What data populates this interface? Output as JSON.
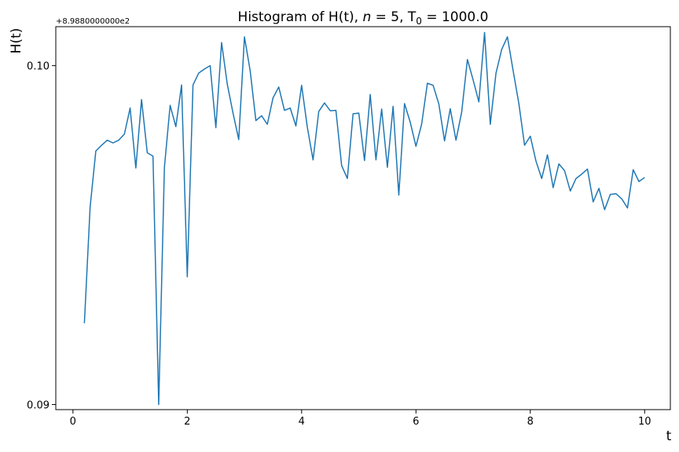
{
  "chart_data": {
    "type": "line",
    "title_parts": {
      "pre": "Histogram of H(t), ",
      "italic": "n",
      "mid": " = 5, T",
      "sub": "0",
      "post": " = 1000.0"
    },
    "xlabel": "t",
    "ylabel": "H(t)",
    "offset_text": "+8.9880000000e2",
    "xlim": [
      -0.3,
      10.45
    ],
    "ylim": [
      0.08985,
      0.10115
    ],
    "xticks": [
      0,
      2,
      4,
      6,
      8,
      10
    ],
    "xtick_labels": [
      "0",
      "2",
      "4",
      "6",
      "8",
      "10"
    ],
    "yticks": [
      0.09,
      0.1
    ],
    "ytick_labels": [
      "0.09",
      "0.10"
    ],
    "grid": false,
    "series": [
      {
        "color": "#1f77b4",
        "x": [
          0.2,
          0.3,
          0.4,
          0.5,
          0.6,
          0.7,
          0.8,
          0.9,
          1.0,
          1.1,
          1.2,
          1.3,
          1.4,
          1.5,
          1.6,
          1.7,
          1.8,
          1.9,
          2.0,
          2.1,
          2.2,
          2.3,
          2.4,
          2.5,
          2.6,
          2.7,
          2.8,
          2.9,
          3.0,
          3.1,
          3.2,
          3.3,
          3.4,
          3.5,
          3.6,
          3.7,
          3.8,
          3.9,
          4.0,
          4.1,
          4.2,
          4.3,
          4.4,
          4.5,
          4.6,
          4.7,
          4.8,
          4.9,
          5.0,
          5.1,
          5.2,
          5.3,
          5.4,
          5.5,
          5.6,
          5.7,
          5.8,
          5.9,
          6.0,
          6.1,
          6.2,
          6.3,
          6.4,
          6.5,
          6.6,
          6.7,
          6.8,
          6.9,
          7.0,
          7.1,
          7.2,
          7.3,
          7.4,
          7.5,
          7.6,
          7.7,
          7.8,
          7.9,
          8.0,
          8.1,
          8.2,
          8.3,
          8.4,
          8.5,
          8.6,
          8.7,
          8.8,
          8.9,
          9.0,
          9.1,
          9.2,
          9.3,
          9.4,
          9.5,
          9.6,
          9.7,
          9.8,
          9.9,
          10.0
        ],
        "y": [
          0.0924,
          0.09582,
          0.09748,
          0.09765,
          0.0978,
          0.09772,
          0.0978,
          0.09798,
          0.09875,
          0.09698,
          0.099,
          0.09743,
          0.09733,
          0.09,
          0.097,
          0.09883,
          0.0982,
          0.09943,
          0.09377,
          0.09943,
          0.09978,
          0.0999,
          0.1,
          0.09817,
          0.10068,
          0.09945,
          0.0986,
          0.09782,
          0.10085,
          0.09985,
          0.09838,
          0.09852,
          0.09827,
          0.09905,
          0.09937,
          0.09868,
          0.09875,
          0.09822,
          0.09942,
          0.09818,
          0.09722,
          0.09865,
          0.0989,
          0.09867,
          0.09868,
          0.09705,
          0.09667,
          0.09858,
          0.0986,
          0.0972,
          0.09915,
          0.09722,
          0.09872,
          0.097,
          0.0988,
          0.09618,
          0.09888,
          0.09833,
          0.09762,
          0.09828,
          0.09948,
          0.09942,
          0.09887,
          0.09778,
          0.09873,
          0.0978,
          0.09863,
          0.10018,
          0.09958,
          0.09893,
          0.10098,
          0.09827,
          0.09978,
          0.10048,
          0.10085,
          0.09985,
          0.09888,
          0.09765,
          0.09792,
          0.09718,
          0.09667,
          0.09737,
          0.0964,
          0.0971,
          0.0969,
          0.0963,
          0.09667,
          0.0968,
          0.09695,
          0.09598,
          0.09638,
          0.09575,
          0.0962,
          0.09622,
          0.09607,
          0.0958,
          0.09693,
          0.09658,
          0.0967
        ]
      }
    ]
  }
}
